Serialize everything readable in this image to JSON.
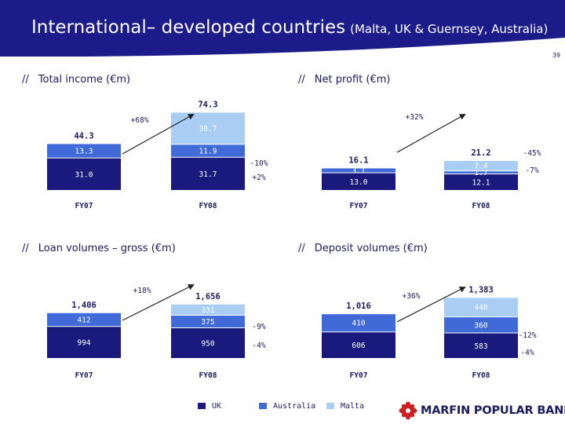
{
  "header": {
    "title": "International– developed countries",
    "subtitle": "(Malta, UK & Guernsey, Australia)"
  },
  "page_number": "39",
  "section_marker": "//",
  "colors": {
    "header": "#1b1b8a",
    "uk": "#1a1a7c",
    "australia": "#3f6ad8",
    "malta": "#a9cdf3",
    "arrow": "#cc2020"
  },
  "legend": [
    {
      "name": "UK",
      "color": "#1a1a7c"
    },
    {
      "name": "Australia",
      "color": "#3f6ad8"
    },
    {
      "name": "Malta",
      "color": "#a9cdf3"
    }
  ],
  "logo": {
    "text": "MARFIN POPULAR BANK",
    "icon": "marfin-popular-bank-logo-icon"
  },
  "chart_data": [
    {
      "id": "total-income",
      "type": "bar",
      "title": "Total income (€m)",
      "categories": [
        "FY07",
        "FY08"
      ],
      "series": [
        {
          "name": "UK",
          "values": [
            31.0,
            31.7
          ],
          "labels": [
            "31.0",
            "31.7"
          ]
        },
        {
          "name": "Australia",
          "values": [
            13.3,
            11.9
          ],
          "labels": [
            "13.3",
            "11.9"
          ]
        },
        {
          "name": "Malta",
          "values": [
            0,
            30.7
          ],
          "labels": [
            "",
            "30.7"
          ]
        }
      ],
      "totals": [
        "44.3",
        "74.3"
      ],
      "growth": "+68%",
      "series_changes": [
        {
          "series": "Australia",
          "label": "-10%"
        },
        {
          "series": "UK",
          "label": "+2%"
        }
      ]
    },
    {
      "id": "net-profit",
      "type": "bar",
      "title": "Net profit (€m)",
      "categories": [
        "FY07",
        "FY08"
      ],
      "series": [
        {
          "name": "UK",
          "values": [
            13.0,
            12.1
          ],
          "labels": [
            "13.0",
            "12.1"
          ]
        },
        {
          "name": "Australia",
          "values": [
            3.1,
            1.7
          ],
          "labels": [
            "3.1",
            "1.7"
          ]
        },
        {
          "name": "Malta",
          "values": [
            0,
            7.4
          ],
          "labels": [
            "",
            "7.4"
          ]
        }
      ],
      "totals": [
        "16.1",
        "21.2"
      ],
      "growth": "+32%",
      "series_changes": [
        {
          "series": "Australia",
          "label": "-45%"
        },
        {
          "series": "UK",
          "label": "-7%"
        }
      ]
    },
    {
      "id": "loan-volumes",
      "type": "bar",
      "title": "Loan volumes – gross (€m)",
      "categories": [
        "FY07",
        "FY08"
      ],
      "series": [
        {
          "name": "UK",
          "values": [
            994,
            950
          ],
          "labels": [
            "994",
            "950"
          ]
        },
        {
          "name": "Australia",
          "values": [
            412,
            375
          ],
          "labels": [
            "412",
            "375"
          ]
        },
        {
          "name": "Malta",
          "values": [
            0,
            331
          ],
          "labels": [
            "",
            "331"
          ]
        }
      ],
      "totals": [
        "1,406",
        "1,656"
      ],
      "growth": "+18%",
      "series_changes": [
        {
          "series": "Australia",
          "label": "-9%"
        },
        {
          "series": "UK",
          "label": "-4%"
        }
      ]
    },
    {
      "id": "deposit-volumes",
      "type": "bar",
      "title": "Deposit volumes (€m)",
      "categories": [
        "FY07",
        "FY08"
      ],
      "series": [
        {
          "name": "UK",
          "values": [
            606,
            583
          ],
          "labels": [
            "606",
            "583"
          ]
        },
        {
          "name": "Australia",
          "values": [
            410,
            360
          ],
          "labels": [
            "410",
            "360"
          ]
        },
        {
          "name": "Malta",
          "values": [
            0,
            440
          ],
          "labels": [
            "",
            "440"
          ]
        }
      ],
      "totals": [
        "1,016",
        "1,383"
      ],
      "growth": "+36%",
      "series_changes": [
        {
          "series": "Australia",
          "label": "-12%"
        },
        {
          "series": "UK",
          "label": "-4%"
        }
      ]
    }
  ]
}
